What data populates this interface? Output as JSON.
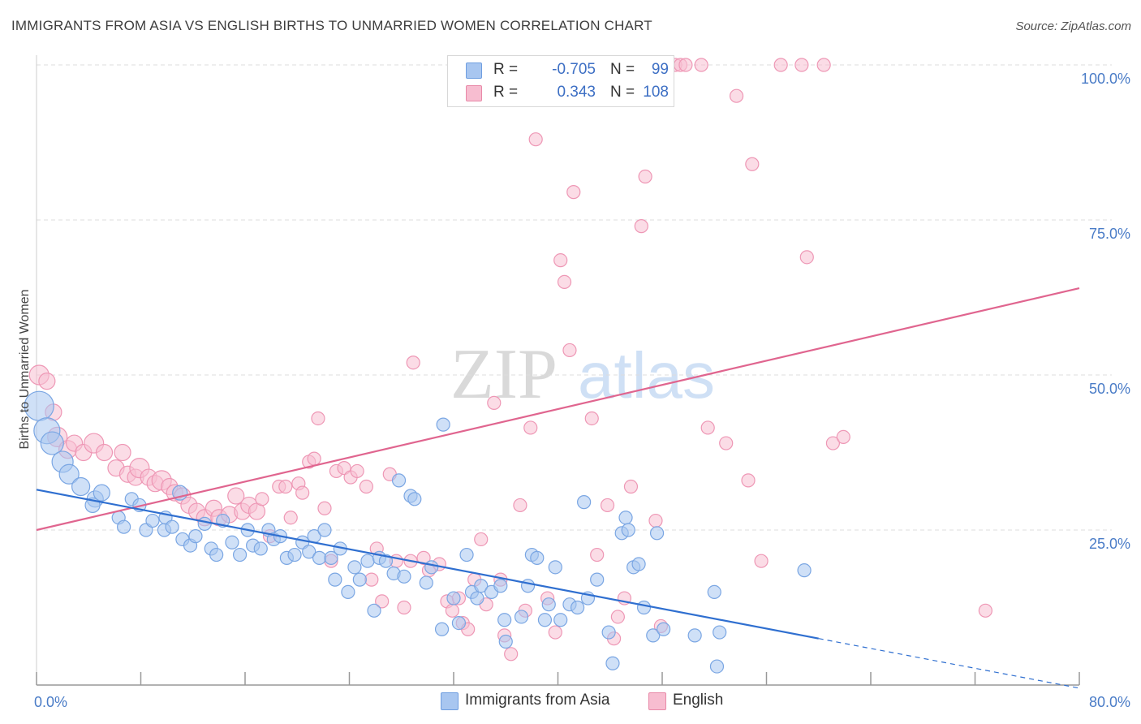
{
  "title": "IMMIGRANTS FROM ASIA VS ENGLISH BIRTHS TO UNMARRIED WOMEN CORRELATION CHART",
  "source": "Source: ZipAtlas.com",
  "watermark": {
    "zip": "ZIP",
    "atlas": "atlas"
  },
  "legend": {
    "r_label": "R =",
    "n_label": "N =",
    "rows": [
      {
        "r": "-0.705",
        "n": "99",
        "color": "#a8c6f0",
        "border": "#6f9ee0"
      },
      {
        "r": "0.343",
        "n": "108",
        "color": "#f7bdd0",
        "border": "#e889a8"
      }
    ]
  },
  "bottom_legend": [
    {
      "label": "Immigrants from Asia",
      "color": "#a8c6f0",
      "border": "#6f9ee0"
    },
    {
      "label": "English",
      "color": "#f7bdd0",
      "border": "#e889a8"
    }
  ],
  "colors": {
    "blue_fill": "#a8c6f0",
    "blue_stroke": "#7aa6e3",
    "blue_line": "#2f6fd0",
    "pink_fill": "#f7c0d2",
    "pink_stroke": "#ee97b5",
    "pink_line": "#e0658f",
    "grid": "#dddddd",
    "axis_label": "#4a7cc7"
  },
  "chart_data": {
    "type": "scatter",
    "ylabel": "Births to Unmarried Women",
    "xlim": [
      0,
      80
    ],
    "ylim": [
      0,
      100
    ],
    "x_tick_labels": [
      "0.0%",
      "80.0%"
    ],
    "y_ticks": [
      25,
      50,
      75,
      100
    ],
    "y_tick_labels": [
      "25.0%",
      "50.0%",
      "75.0%",
      "100.0%"
    ],
    "grid": true,
    "series": [
      {
        "name": "Immigrants from Asia",
        "trend": {
          "x0": 0,
          "y0": 31.5,
          "x1": 60,
          "y1": 7.5,
          "dash_to_x": 80,
          "dash_to_y": -0.5
        },
        "points": [
          [
            0.2,
            45,
            18
          ],
          [
            0.8,
            41,
            16
          ],
          [
            1.2,
            39,
            14
          ],
          [
            2,
            36,
            13
          ],
          [
            2.5,
            34,
            12
          ],
          [
            3.4,
            32,
            11
          ],
          [
            4.5,
            30,
            10
          ],
          [
            5,
            31,
            10
          ],
          [
            4.3,
            29,
            9
          ],
          [
            6.3,
            27,
            8
          ],
          [
            6.7,
            25.5,
            8
          ],
          [
            7.3,
            30,
            8
          ],
          [
            7.9,
            29,
            8
          ],
          [
            8.4,
            25,
            8
          ],
          [
            8.9,
            26.5,
            8
          ],
          [
            9.8,
            25,
            8
          ],
          [
            9.9,
            27,
            8
          ],
          [
            10.4,
            25.5,
            8
          ],
          [
            11,
            31,
            9
          ],
          [
            11.2,
            23.5,
            8
          ],
          [
            11.8,
            22.5,
            8
          ],
          [
            12.2,
            24,
            8
          ],
          [
            12.9,
            26,
            8
          ],
          [
            13.4,
            22,
            8
          ],
          [
            13.8,
            21,
            8
          ],
          [
            14.3,
            26.5,
            8
          ],
          [
            15,
            23,
            8
          ],
          [
            15.6,
            21,
            8
          ],
          [
            16.2,
            25,
            8
          ],
          [
            16.6,
            22.5,
            8
          ],
          [
            17.2,
            22,
            8
          ],
          [
            17.8,
            25,
            8
          ],
          [
            18.2,
            23.5,
            8
          ],
          [
            18.7,
            24,
            8
          ],
          [
            19.2,
            20.5,
            8
          ],
          [
            19.8,
            21,
            8
          ],
          [
            20.4,
            23,
            8
          ],
          [
            20.9,
            21.5,
            8
          ],
          [
            21.3,
            24,
            8
          ],
          [
            21.7,
            20.5,
            8
          ],
          [
            22.1,
            25,
            8
          ],
          [
            22.6,
            20.5,
            8
          ],
          [
            22.9,
            17,
            8
          ],
          [
            23.3,
            22,
            8
          ],
          [
            23.9,
            15,
            8
          ],
          [
            24.4,
            19,
            8
          ],
          [
            24.8,
            17,
            8
          ],
          [
            25.4,
            20,
            8
          ],
          [
            25.9,
            12,
            8
          ],
          [
            26.3,
            20.5,
            8
          ],
          [
            26.8,
            20,
            8
          ],
          [
            27.4,
            18,
            8
          ],
          [
            27.8,
            33,
            8
          ],
          [
            28.2,
            17.5,
            8
          ],
          [
            28.7,
            30.5,
            8
          ],
          [
            29,
            30,
            8
          ],
          [
            29.9,
            16.5,
            8
          ],
          [
            30.3,
            19,
            8
          ],
          [
            31.1,
            9,
            8
          ],
          [
            31.2,
            42,
            8
          ],
          [
            32,
            14,
            8
          ],
          [
            32.4,
            10,
            8
          ],
          [
            33,
            21,
            8
          ],
          [
            33.4,
            15,
            8
          ],
          [
            33.8,
            14,
            8
          ],
          [
            34.1,
            16,
            8
          ],
          [
            34.9,
            15,
            8
          ],
          [
            35.6,
            16,
            8
          ],
          [
            35.9,
            10.5,
            8
          ],
          [
            36,
            7,
            8
          ],
          [
            37.2,
            11,
            8
          ],
          [
            37.7,
            16,
            8
          ],
          [
            38,
            21,
            8
          ],
          [
            38.4,
            20.5,
            8
          ],
          [
            39,
            10.5,
            8
          ],
          [
            39.3,
            13,
            8
          ],
          [
            39.8,
            19,
            8
          ],
          [
            40.2,
            10.5,
            8
          ],
          [
            40.9,
            13,
            8
          ],
          [
            41.5,
            12.5,
            8
          ],
          [
            42.3,
            14,
            8
          ],
          [
            42,
            29.5,
            8
          ],
          [
            43,
            17,
            8
          ],
          [
            43.9,
            8.5,
            8
          ],
          [
            44.2,
            3.5,
            8
          ],
          [
            44.9,
            24.5,
            8
          ],
          [
            45.2,
            27,
            8
          ],
          [
            45.4,
            25,
            8
          ],
          [
            45.8,
            19,
            8
          ],
          [
            46.2,
            19.5,
            8
          ],
          [
            46.6,
            12.5,
            8
          ],
          [
            47.3,
            8,
            8
          ],
          [
            47.6,
            24.5,
            8
          ],
          [
            48.1,
            9,
            8
          ],
          [
            50.5,
            8,
            8
          ],
          [
            52,
            15,
            8
          ],
          [
            52.2,
            3,
            8
          ],
          [
            52.4,
            8.5,
            8
          ],
          [
            58.9,
            18.5,
            8
          ]
        ]
      },
      {
        "name": "English",
        "trend": {
          "x0": 0,
          "y0": 25,
          "x1": 80,
          "y1": 64
        },
        "points": [
          [
            0.2,
            50,
            12
          ],
          [
            0.8,
            49,
            10
          ],
          [
            1.3,
            44,
            10
          ],
          [
            1.6,
            40,
            12
          ],
          [
            2.4,
            38,
            11
          ],
          [
            2.9,
            39,
            10
          ],
          [
            3.6,
            37.5,
            10
          ],
          [
            4.4,
            39,
            12
          ],
          [
            5.2,
            37.5,
            10
          ],
          [
            6.1,
            35,
            10
          ],
          [
            6.6,
            37.5,
            10
          ],
          [
            7,
            34,
            10
          ],
          [
            7.6,
            33.5,
            10
          ],
          [
            7.9,
            35,
            12
          ],
          [
            8.6,
            33.5,
            10
          ],
          [
            9.1,
            32.5,
            10
          ],
          [
            9.6,
            33,
            12
          ],
          [
            10.2,
            32,
            10
          ],
          [
            10.6,
            31,
            10
          ],
          [
            11.2,
            30.5,
            10
          ],
          [
            11.7,
            29,
            10
          ],
          [
            12.3,
            28,
            10
          ],
          [
            12.9,
            27,
            10
          ],
          [
            13.6,
            28.5,
            10
          ],
          [
            14,
            27,
            10
          ],
          [
            14.8,
            27.5,
            10
          ],
          [
            15.3,
            30.5,
            10
          ],
          [
            15.8,
            28,
            10
          ],
          [
            16.3,
            29,
            10
          ],
          [
            16.9,
            28,
            10
          ],
          [
            17.3,
            30,
            8
          ],
          [
            17.9,
            24,
            8
          ],
          [
            18.6,
            32,
            8
          ],
          [
            19.1,
            32,
            8
          ],
          [
            19.5,
            27,
            8
          ],
          [
            20.1,
            32.5,
            8
          ],
          [
            20.4,
            31,
            8
          ],
          [
            20.9,
            36,
            8
          ],
          [
            21.3,
            36.5,
            8
          ],
          [
            21.6,
            43,
            8
          ],
          [
            22.1,
            28.5,
            8
          ],
          [
            22.6,
            20,
            8
          ],
          [
            23,
            34.5,
            8
          ],
          [
            23.6,
            35,
            8
          ],
          [
            24.1,
            33.5,
            8
          ],
          [
            24.6,
            34.5,
            8
          ],
          [
            25.3,
            32,
            8
          ],
          [
            25.7,
            17,
            8
          ],
          [
            26.1,
            22,
            8
          ],
          [
            26.5,
            13.5,
            8
          ],
          [
            27.1,
            34,
            8
          ],
          [
            27.6,
            20,
            8
          ],
          [
            28.2,
            12.5,
            8
          ],
          [
            28.7,
            20,
            8
          ],
          [
            28.9,
            52,
            8
          ],
          [
            29.7,
            20.5,
            8
          ],
          [
            30.1,
            18.5,
            8
          ],
          [
            30.9,
            19.5,
            8
          ],
          [
            31.5,
            13.5,
            8
          ],
          [
            31.9,
            12,
            8
          ],
          [
            32.4,
            14,
            8
          ],
          [
            32.7,
            10,
            8
          ],
          [
            33.1,
            9,
            8
          ],
          [
            33.6,
            17,
            8
          ],
          [
            34.1,
            23.5,
            8
          ],
          [
            34.5,
            13,
            8
          ],
          [
            35.1,
            45.5,
            8
          ],
          [
            35.6,
            17,
            8
          ],
          [
            35.9,
            8,
            8
          ],
          [
            36.4,
            5,
            8
          ],
          [
            37.1,
            29,
            8
          ],
          [
            37.5,
            12,
            8
          ],
          [
            37.9,
            41.5,
            8
          ],
          [
            38.3,
            88,
            8
          ],
          [
            39.2,
            14,
            8
          ],
          [
            39.8,
            8.5,
            8
          ],
          [
            40.2,
            68.5,
            8
          ],
          [
            40.5,
            65,
            8
          ],
          [
            40.9,
            54,
            8
          ],
          [
            41.2,
            79.5,
            8
          ],
          [
            42.6,
            43,
            8
          ],
          [
            43,
            21,
            8
          ],
          [
            43.8,
            29,
            8
          ],
          [
            44.3,
            7.5,
            8
          ],
          [
            44.6,
            11,
            8
          ],
          [
            45.1,
            14,
            8
          ],
          [
            45.6,
            32,
            8
          ],
          [
            46.4,
            74,
            8
          ],
          [
            46.7,
            82,
            8
          ],
          [
            47.5,
            26.5,
            8
          ],
          [
            47.9,
            9.5,
            8
          ],
          [
            49,
            100,
            8
          ],
          [
            49.4,
            100,
            8
          ],
          [
            49.8,
            100,
            8
          ],
          [
            51,
            100,
            8
          ],
          [
            51.5,
            41.5,
            8
          ],
          [
            52.9,
            39,
            8
          ],
          [
            53.7,
            95,
            8
          ],
          [
            54.6,
            33,
            8
          ],
          [
            54.9,
            84,
            8
          ],
          [
            55.6,
            20,
            8
          ],
          [
            57.1,
            100,
            8
          ],
          [
            58.7,
            100,
            8
          ],
          [
            59.1,
            69,
            8
          ],
          [
            60.4,
            100,
            8
          ],
          [
            61.1,
            39,
            8
          ],
          [
            61.9,
            40,
            8
          ],
          [
            72.8,
            12,
            8
          ]
        ]
      }
    ]
  }
}
